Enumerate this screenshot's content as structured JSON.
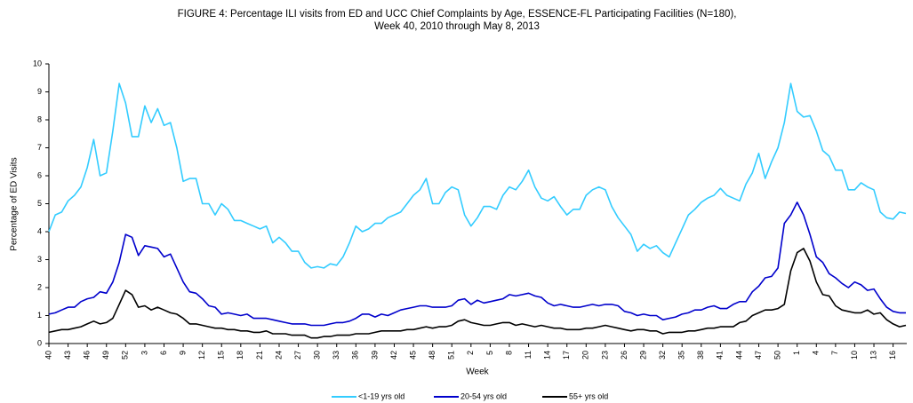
{
  "chart_data": {
    "type": "line",
    "title": [
      "FIGURE 4: Percentage ILI visits from ED and UCC Chief Complaints by Age, ESSENCE-FL Participating Facilities (N=180),",
      "Week  40, 2010 through May 8, 2013"
    ],
    "x_label": "Week",
    "y_label": "Percentage of ED Visits",
    "ylim": [
      0,
      10
    ],
    "yticks": [
      0,
      1,
      2,
      3,
      4,
      5,
      6,
      7,
      8,
      9,
      10
    ],
    "grid": false,
    "legend": "bottom",
    "categories": [
      "40",
      null,
      null,
      "43",
      null,
      null,
      "46",
      null,
      null,
      "49",
      null,
      null,
      "52",
      null,
      null,
      "3",
      null,
      null,
      "6",
      null,
      null,
      "9",
      null,
      null,
      "12",
      null,
      null,
      "15",
      null,
      null,
      "18",
      null,
      null,
      "21",
      null,
      null,
      "24",
      null,
      null,
      "27",
      null,
      null,
      "30",
      null,
      null,
      "33",
      null,
      null,
      "36",
      null,
      null,
      "39",
      null,
      null,
      "42",
      null,
      null,
      "45",
      null,
      null,
      "48",
      null,
      null,
      "51",
      null,
      null,
      "2",
      null,
      null,
      "5",
      null,
      null,
      "8",
      null,
      null,
      "11",
      null,
      null,
      "14",
      null,
      null,
      "17",
      null,
      null,
      "20",
      null,
      null,
      "23",
      null,
      null,
      "26",
      null,
      null,
      "29",
      null,
      null,
      "32",
      null,
      null,
      "35",
      null,
      null,
      "38",
      null,
      null,
      "41",
      null,
      null,
      "44",
      null,
      null,
      "47",
      null,
      null,
      "50",
      null,
      null,
      "1",
      null,
      null,
      "4",
      null,
      null,
      "7",
      null,
      null,
      "10",
      null,
      null,
      "13",
      null,
      null,
      "16",
      null,
      null
    ],
    "series": [
      {
        "name": "<1-19 yrs old",
        "color": "#33ccff",
        "values": [
          4.0,
          4.6,
          4.7,
          5.1,
          5.3,
          5.6,
          6.3,
          7.3,
          6.0,
          6.1,
          7.6,
          9.3,
          8.6,
          7.4,
          7.4,
          8.5,
          7.9,
          8.4,
          7.8,
          7.9,
          7.0,
          5.8,
          5.9,
          5.9,
          5.0,
          5.0,
          4.6,
          5.0,
          4.8,
          4.4,
          4.4,
          4.3,
          4.2,
          4.1,
          4.2,
          3.6,
          3.8,
          3.6,
          3.3,
          3.3,
          2.9,
          2.7,
          2.75,
          2.7,
          2.85,
          2.8,
          3.1,
          3.6,
          4.2,
          4.0,
          4.1,
          4.3,
          4.3,
          4.5,
          4.6,
          4.7,
          5.0,
          5.3,
          5.5,
          5.9,
          5.0,
          5.0,
          5.4,
          5.6,
          5.5,
          4.6,
          4.2,
          4.5,
          4.9,
          4.9,
          4.8,
          5.3,
          5.6,
          5.5,
          5.8,
          6.2,
          5.6,
          5.2,
          5.1,
          5.25,
          4.9,
          4.6,
          4.8,
          4.8,
          5.3,
          5.5,
          5.6,
          5.5,
          4.9,
          4.5,
          4.2,
          3.9,
          3.3,
          3.55,
          3.4,
          3.5,
          3.25,
          3.1,
          3.6,
          4.1,
          4.6,
          4.8,
          5.05,
          5.2,
          5.3,
          5.55,
          5.3,
          5.2,
          5.1,
          5.7,
          6.1,
          6.8,
          5.9,
          6.5,
          7.0,
          7.9,
          9.3,
          8.3,
          8.1,
          8.15,
          7.6,
          6.9,
          6.7,
          6.2,
          6.2,
          5.5,
          5.5,
          5.75,
          5.6,
          5.5,
          4.7,
          4.5,
          4.45,
          4.7,
          4.65
        ]
      },
      {
        "name": "20-54 yrs old",
        "color": "#0000cc",
        "values": [
          1.05,
          1.1,
          1.2,
          1.3,
          1.3,
          1.5,
          1.6,
          1.65,
          1.85,
          1.8,
          2.2,
          2.9,
          3.9,
          3.8,
          3.15,
          3.5,
          3.45,
          3.4,
          3.1,
          3.2,
          2.7,
          2.2,
          1.85,
          1.8,
          1.6,
          1.35,
          1.3,
          1.05,
          1.1,
          1.05,
          1.0,
          1.05,
          0.9,
          0.9,
          0.9,
          0.85,
          0.8,
          0.75,
          0.7,
          0.7,
          0.7,
          0.65,
          0.65,
          0.65,
          0.7,
          0.75,
          0.75,
          0.8,
          0.9,
          1.05,
          1.05,
          0.95,
          1.05,
          1.0,
          1.1,
          1.2,
          1.25,
          1.3,
          1.35,
          1.35,
          1.3,
          1.3,
          1.3,
          1.35,
          1.55,
          1.6,
          1.4,
          1.55,
          1.45,
          1.5,
          1.55,
          1.6,
          1.75,
          1.7,
          1.75,
          1.8,
          1.7,
          1.65,
          1.45,
          1.35,
          1.4,
          1.35,
          1.3,
          1.3,
          1.35,
          1.4,
          1.35,
          1.4,
          1.4,
          1.35,
          1.15,
          1.1,
          1.0,
          1.05,
          1.0,
          1.0,
          0.85,
          0.9,
          0.95,
          1.05,
          1.1,
          1.2,
          1.2,
          1.3,
          1.35,
          1.25,
          1.25,
          1.4,
          1.5,
          1.5,
          1.85,
          2.05,
          2.35,
          2.4,
          2.7,
          4.3,
          4.6,
          5.05,
          4.6,
          3.9,
          3.1,
          2.9,
          2.5,
          2.35,
          2.15,
          2.0,
          2.2,
          2.1,
          1.9,
          1.95,
          1.6,
          1.3,
          1.15,
          1.1,
          1.1
        ]
      },
      {
        "name": "55+ yrs old",
        "color": "#000000",
        "values": [
          0.4,
          0.45,
          0.5,
          0.5,
          0.55,
          0.6,
          0.7,
          0.8,
          0.7,
          0.75,
          0.9,
          1.4,
          1.9,
          1.75,
          1.3,
          1.35,
          1.2,
          1.3,
          1.2,
          1.1,
          1.05,
          0.9,
          0.7,
          0.7,
          0.65,
          0.6,
          0.55,
          0.55,
          0.5,
          0.5,
          0.45,
          0.45,
          0.4,
          0.4,
          0.45,
          0.35,
          0.35,
          0.35,
          0.3,
          0.3,
          0.3,
          0.2,
          0.2,
          0.25,
          0.25,
          0.3,
          0.3,
          0.3,
          0.35,
          0.35,
          0.35,
          0.4,
          0.45,
          0.45,
          0.45,
          0.45,
          0.5,
          0.5,
          0.55,
          0.6,
          0.55,
          0.6,
          0.6,
          0.65,
          0.8,
          0.85,
          0.75,
          0.7,
          0.65,
          0.65,
          0.7,
          0.75,
          0.75,
          0.65,
          0.7,
          0.65,
          0.6,
          0.65,
          0.6,
          0.55,
          0.55,
          0.5,
          0.5,
          0.5,
          0.55,
          0.55,
          0.6,
          0.65,
          0.6,
          0.55,
          0.5,
          0.45,
          0.5,
          0.5,
          0.45,
          0.45,
          0.35,
          0.4,
          0.4,
          0.4,
          0.45,
          0.45,
          0.5,
          0.55,
          0.55,
          0.6,
          0.6,
          0.6,
          0.75,
          0.8,
          1.0,
          1.1,
          1.2,
          1.2,
          1.25,
          1.4,
          2.6,
          3.25,
          3.4,
          2.95,
          2.2,
          1.75,
          1.7,
          1.35,
          1.2,
          1.15,
          1.1,
          1.1,
          1.2,
          1.05,
          1.1,
          0.85,
          0.7,
          0.6,
          0.65
        ]
      }
    ]
  }
}
